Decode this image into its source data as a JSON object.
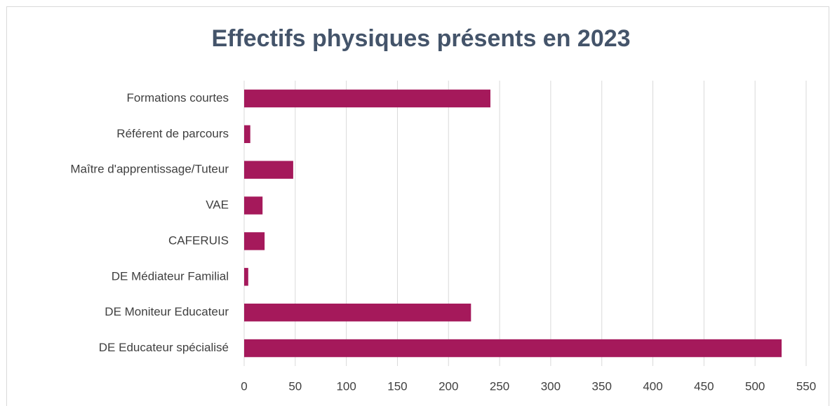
{
  "chart_data": {
    "type": "bar",
    "orientation": "horizontal",
    "title": "Effectifs physiques présents en 2023",
    "categories": [
      "Formations courtes",
      "Référent de parcours",
      "Maître d'apprentissage/Tuteur",
      "VAE",
      "CAFERUIS",
      "DE Médiateur Familial",
      "DE Moniteur Educateur",
      "DE Educateur spécialisé"
    ],
    "values": [
      241,
      6,
      48,
      18,
      20,
      4,
      222,
      526
    ],
    "color": "#a5195b",
    "xlim": [
      0,
      550
    ],
    "xticks": [
      0,
      50,
      100,
      150,
      200,
      250,
      300,
      350,
      400,
      450,
      500,
      550
    ],
    "grid": true
  }
}
